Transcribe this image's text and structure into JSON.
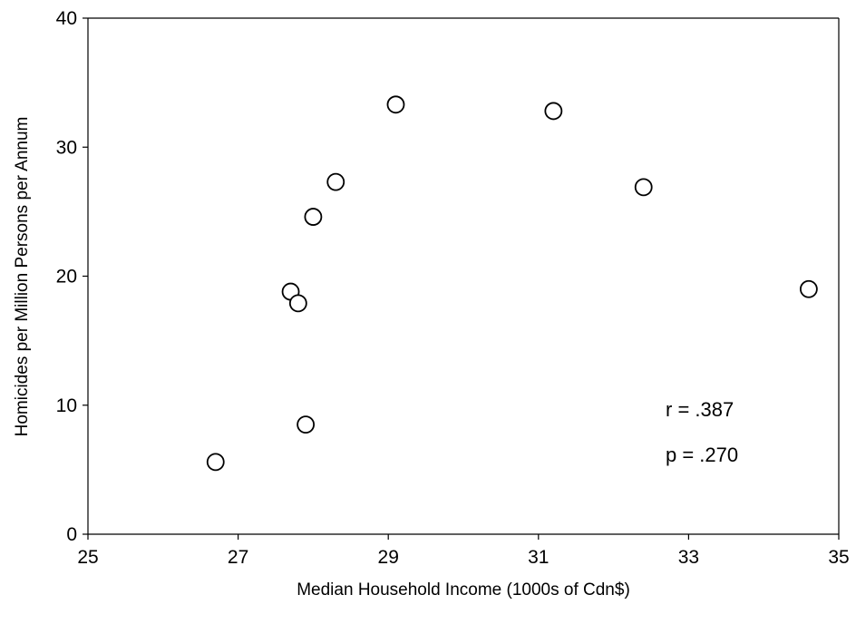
{
  "chart_data": {
    "type": "scatter",
    "xlabel": "Median Household Income (1000s of Cdn$)",
    "ylabel": "Homicides per Million Persons per Annum",
    "xlim": [
      25,
      35
    ],
    "ylim": [
      0,
      40
    ],
    "xticks": [
      "25",
      "27",
      "29",
      "31",
      "33",
      "35"
    ],
    "yticks": [
      "0",
      "10",
      "20",
      "30",
      "40"
    ],
    "grid": false,
    "points": [
      {
        "x": 26.7,
        "y": 5.6
      },
      {
        "x": 27.7,
        "y": 18.8
      },
      {
        "x": 27.8,
        "y": 17.9
      },
      {
        "x": 27.9,
        "y": 8.5
      },
      {
        "x": 28.0,
        "y": 24.6
      },
      {
        "x": 28.3,
        "y": 27.3
      },
      {
        "x": 29.1,
        "y": 33.3
      },
      {
        "x": 31.2,
        "y": 32.8
      },
      {
        "x": 32.4,
        "y": 26.9
      },
      {
        "x": 34.6,
        "y": 19.0
      }
    ],
    "annotations": [
      "r = .387",
      "p = .270"
    ]
  }
}
